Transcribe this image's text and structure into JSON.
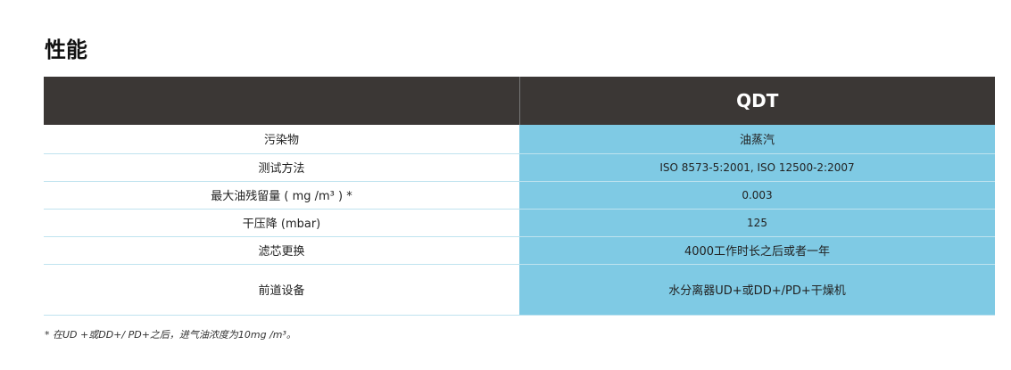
{
  "header": {
    "title": "性能"
  },
  "table": {
    "column_header": "QDT",
    "rows": [
      [
        "污染物",
        "油蒸汽"
      ],
      [
        "测试方法",
        "ISO 8573-5:2001, ISO 12500-2:2007"
      ],
      [
        "最大油残留量 ( mg /m³ ) *",
        "0.003"
      ],
      [
        "干压降 (mbar)",
        "125"
      ],
      [
        "滤芯更换",
        "4000工作时长之后或者一年"
      ],
      [
        "前道设备",
        "水分离器UD+或DD+/PD+干燥机"
      ]
    ]
  },
  "footnote": "* 在UD +或DD+/ PD+之后，进气油浓度为10mg /m³。"
}
